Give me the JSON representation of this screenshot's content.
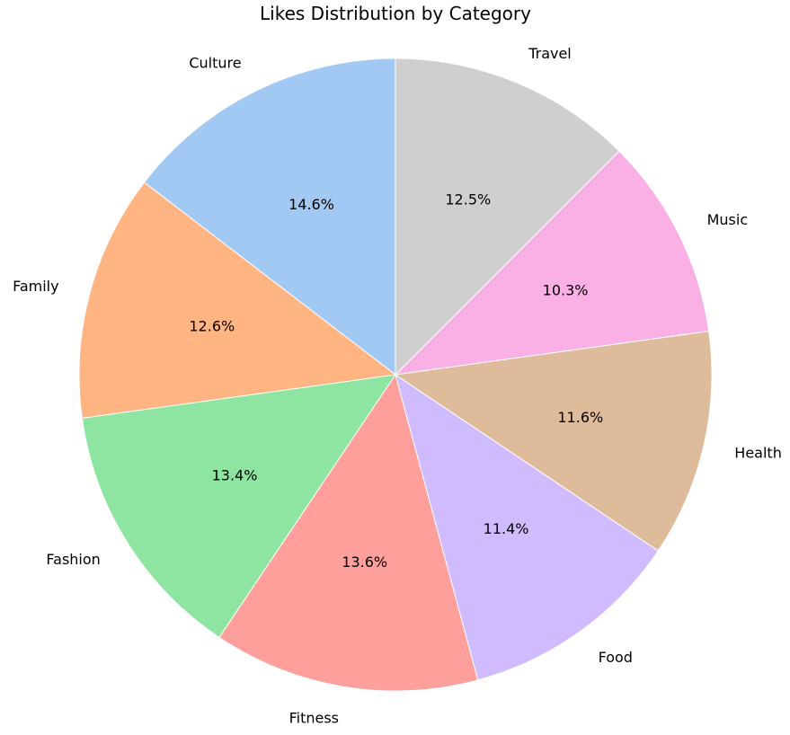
{
  "chart_data": {
    "type": "pie",
    "title": "Likes Distribution by Category",
    "start_angle": "top",
    "direction": "counterclockwise",
    "slices": [
      {
        "label": "Culture",
        "value": 14.6,
        "pct_label": "14.6%",
        "color": "#a1c9f4"
      },
      {
        "label": "Family",
        "value": 12.6,
        "pct_label": "12.6%",
        "color": "#ffb482"
      },
      {
        "label": "Fashion",
        "value": 13.4,
        "pct_label": "13.4%",
        "color": "#8de5a1"
      },
      {
        "label": "Fitness",
        "value": 13.6,
        "pct_label": "13.6%",
        "color": "#ff9f9b"
      },
      {
        "label": "Food",
        "value": 11.4,
        "pct_label": "11.4%",
        "color": "#d0bbff"
      },
      {
        "label": "Health",
        "value": 11.6,
        "pct_label": "11.6%",
        "color": "#debb9b"
      },
      {
        "label": "Music",
        "value": 10.3,
        "pct_label": "10.3%",
        "color": "#fab0e4"
      },
      {
        "label": "Travel",
        "value": 12.5,
        "pct_label": "12.5%",
        "color": "#cfcfcf"
      }
    ]
  }
}
